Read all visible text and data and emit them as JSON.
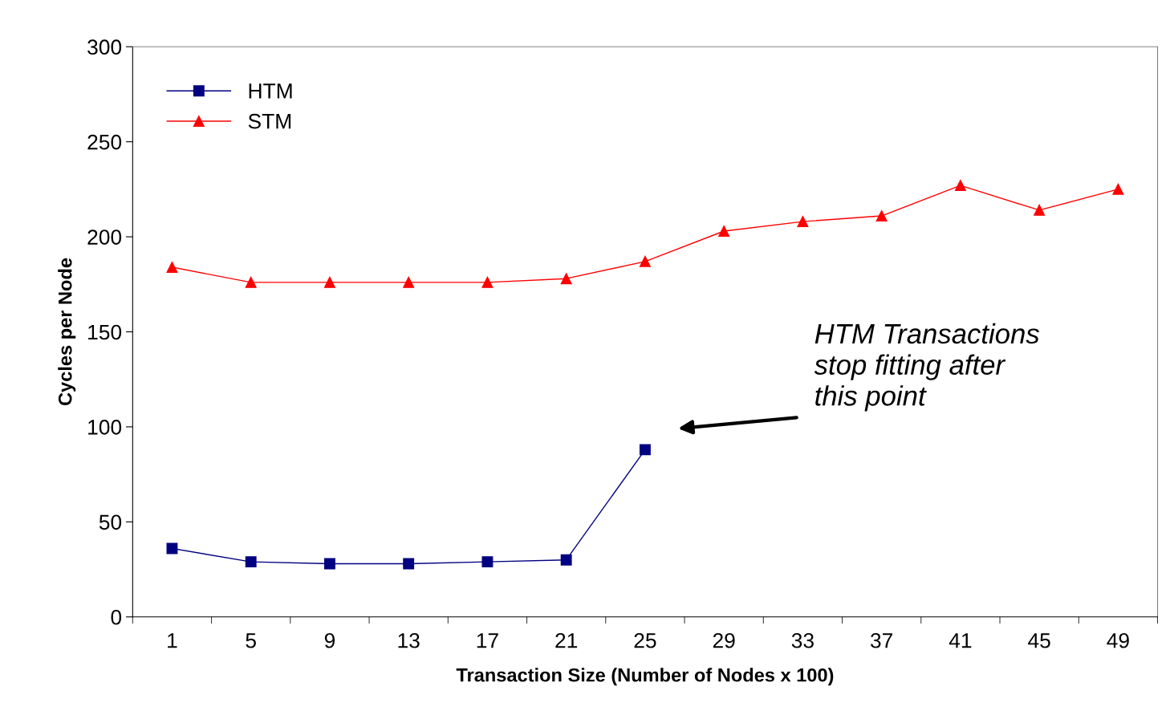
{
  "chart_data": {
    "type": "line",
    "xlabel": "Transaction Size (Number of Nodes x 100)",
    "ylabel": "Cycles per Node",
    "categories": [
      "1",
      "5",
      "9",
      "13",
      "17",
      "21",
      "25",
      "29",
      "33",
      "37",
      "41",
      "45",
      "49"
    ],
    "series": [
      {
        "name": "HTM",
        "color": "#000080",
        "marker": "square",
        "values": [
          36,
          29,
          28,
          28,
          29,
          30,
          88,
          null,
          null,
          null,
          null,
          null,
          null
        ]
      },
      {
        "name": "STM",
        "color": "#ff0000",
        "marker": "triangle",
        "values": [
          184,
          176,
          176,
          176,
          176,
          178,
          187,
          203,
          208,
          211,
          227,
          214,
          225
        ]
      }
    ],
    "ylim": [
      0,
      300
    ],
    "yticks": [
      0,
      50,
      100,
      150,
      200,
      250,
      300
    ],
    "grid": false,
    "legend": "top left",
    "line_style": "solid",
    "annotations": [
      "HTM Transactions\nstop fitting after\nthis point"
    ]
  }
}
